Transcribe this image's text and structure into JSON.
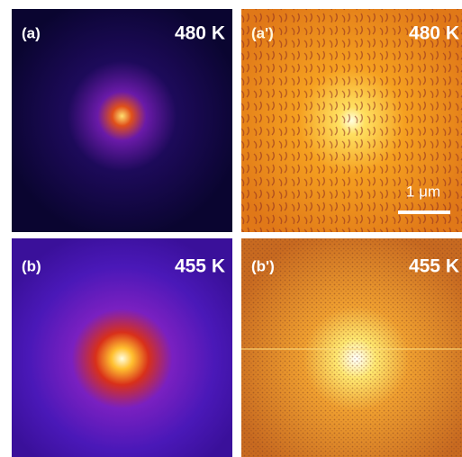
{
  "panels": [
    {
      "label": "(a)",
      "temperature": "480 K"
    },
    {
      "label": "(a')",
      "temperature": "480 K",
      "scale_bar": "1 μm"
    },
    {
      "label": "(b)",
      "temperature": "455 K"
    },
    {
      "label": "(b')",
      "temperature": "455 K"
    }
  ]
}
